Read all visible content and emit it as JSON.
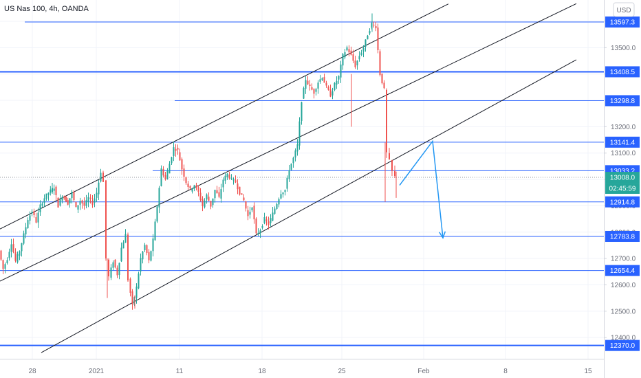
{
  "chart_data": {
    "type": "candlestick",
    "title": "US Nas 100, 4h, OANDA",
    "currency_button": "USD",
    "ylim": [
      12330,
      13660
    ],
    "y_ticks": [
      12400,
      12500,
      12600,
      12700,
      12800,
      12900,
      13000,
      13100,
      13200,
      13300,
      13400,
      13500,
      13600
    ],
    "y_tick_labels": [
      "12400.0",
      "12500.0",
      "12600.0",
      "12700.0",
      "12800.0",
      "12900.0",
      "13000.0",
      "13100.0",
      "13200.0",
      "13300.0",
      "13400.0",
      "13500.0",
      "13600.0"
    ],
    "x_ticks": [
      "28",
      "2021",
      "11",
      "18",
      "25",
      "Feb",
      "8",
      "15"
    ],
    "grid": true,
    "colors": {
      "up": "#26a69a",
      "down": "#ef5350",
      "level": "#2962ff",
      "channel": "#131722",
      "projection": "#2196f3",
      "last_price": "#26a69a",
      "countdown": "#26a69a"
    },
    "levels": [
      {
        "value": 13597.3,
        "label": "13597.3"
      },
      {
        "value": 13408.5,
        "label": "13408.5"
      },
      {
        "value": 13298.8,
        "label": "13298.8"
      },
      {
        "value": 13141.4,
        "label": "13141.4"
      },
      {
        "value": 13033.2,
        "label": "13033.2"
      },
      {
        "value": 12914.8,
        "label": "12914.8"
      },
      {
        "value": 12783.8,
        "label": "12783.8"
      },
      {
        "value": 12654.4,
        "label": "12654.4"
      },
      {
        "value": 12370.0,
        "label": "12370.0"
      }
    ],
    "last_price": {
      "value": 13008.0,
      "label": "13008.0",
      "countdown": "02:45:59"
    },
    "candles_path": [
      [
        0,
        12730
      ],
      [
        6,
        12660
      ],
      [
        12,
        12700
      ],
      [
        18,
        12760
      ],
      [
        24,
        12690
      ],
      [
        30,
        12730
      ],
      [
        36,
        12790
      ],
      [
        42,
        12850
      ],
      [
        48,
        12880
      ],
      [
        54,
        12840
      ],
      [
        60,
        12900
      ],
      [
        66,
        12930
      ],
      [
        72,
        12950
      ],
      [
        80,
        12970
      ],
      [
        86,
        12900
      ],
      [
        92,
        12940
      ],
      [
        100,
        12910
      ],
      [
        106,
        12950
      ],
      [
        112,
        12890
      ],
      [
        118,
        12920
      ],
      [
        124,
        12900
      ],
      [
        130,
        12930
      ],
      [
        136,
        12910
      ],
      [
        142,
        12950
      ],
      [
        148,
        13030
      ],
      [
        152,
        12990
      ],
      [
        156,
        12700
      ],
      [
        160,
        12630
      ],
      [
        166,
        12690
      ],
      [
        172,
        12640
      ],
      [
        178,
        12740
      ],
      [
        184,
        12790
      ],
      [
        188,
        12620
      ],
      [
        194,
        12520
      ],
      [
        200,
        12590
      ],
      [
        206,
        12700
      ],
      [
        212,
        12750
      ],
      [
        218,
        12690
      ],
      [
        224,
        12770
      ],
      [
        230,
        12900
      ],
      [
        236,
        13040
      ],
      [
        242,
        13000
      ],
      [
        248,
        13060
      ],
      [
        254,
        13120
      ],
      [
        260,
        13110
      ],
      [
        266,
        13040
      ],
      [
        272,
        12990
      ],
      [
        278,
        12960
      ],
      [
        284,
        12980
      ],
      [
        290,
        12950
      ],
      [
        296,
        12900
      ],
      [
        302,
        12940
      ],
      [
        308,
        12900
      ],
      [
        314,
        12960
      ],
      [
        320,
        12930
      ],
      [
        326,
        13000
      ],
      [
        332,
        13020
      ],
      [
        338,
        13000
      ],
      [
        344,
        12990
      ],
      [
        350,
        12950
      ],
      [
        356,
        12920
      ],
      [
        362,
        12860
      ],
      [
        368,
        12900
      ],
      [
        374,
        12790
      ],
      [
        380,
        12810
      ],
      [
        386,
        12850
      ],
      [
        392,
        12830
      ],
      [
        398,
        12870
      ],
      [
        404,
        12910
      ],
      [
        410,
        12950
      ],
      [
        416,
        12960
      ],
      [
        422,
        13040
      ],
      [
        428,
        13080
      ],
      [
        434,
        13130
      ],
      [
        440,
        13300
      ],
      [
        446,
        13380
      ],
      [
        452,
        13350
      ],
      [
        458,
        13330
      ],
      [
        464,
        13370
      ],
      [
        470,
        13390
      ],
      [
        476,
        13350
      ],
      [
        482,
        13320
      ],
      [
        488,
        13360
      ],
      [
        494,
        13390
      ],
      [
        500,
        13470
      ],
      [
        506,
        13500
      ],
      [
        512,
        13470
      ],
      [
        518,
        13430
      ],
      [
        524,
        13470
      ],
      [
        530,
        13500
      ],
      [
        536,
        13550
      ],
      [
        542,
        13590
      ],
      [
        548,
        13580
      ],
      [
        554,
        13400
      ],
      [
        560,
        13340
      ],
      [
        564,
        13100
      ],
      [
        568,
        13070
      ],
      [
        572,
        13030
      ],
      [
        576,
        13010
      ]
    ],
    "channels": [
      {
        "x1": 0,
        "y1": 12812,
        "x2": 652,
        "y2": 13666
      },
      {
        "x1": 0,
        "y1": 12614,
        "x2": 838,
        "y2": 13667
      },
      {
        "x1": 60,
        "y1": 12343,
        "x2": 838,
        "y2": 13454
      }
    ],
    "projection": [
      {
        "x": 581,
        "y": 12978
      },
      {
        "x": 629,
        "y": 13145
      },
      {
        "x": 644,
        "y": 12778
      }
    ]
  }
}
